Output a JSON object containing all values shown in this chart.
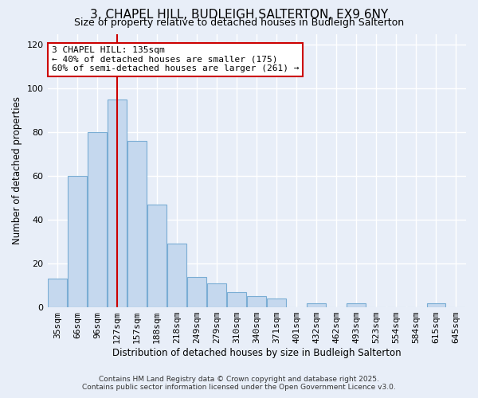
{
  "title1": "3, CHAPEL HILL, BUDLEIGH SALTERTON, EX9 6NY",
  "title2": "Size of property relative to detached houses in Budleigh Salterton",
  "xlabel": "Distribution of detached houses by size in Budleigh Salterton",
  "ylabel": "Number of detached properties",
  "bar_labels": [
    "35sqm",
    "66sqm",
    "96sqm",
    "127sqm",
    "157sqm",
    "188sqm",
    "218sqm",
    "249sqm",
    "279sqm",
    "310sqm",
    "340sqm",
    "371sqm",
    "401sqm",
    "432sqm",
    "462sqm",
    "493sqm",
    "523sqm",
    "554sqm",
    "584sqm",
    "615sqm",
    "645sqm"
  ],
  "bar_values": [
    13,
    60,
    80,
    95,
    76,
    47,
    29,
    14,
    11,
    7,
    5,
    4,
    0,
    2,
    0,
    2,
    0,
    0,
    0,
    2,
    0
  ],
  "bar_color": "#c5d8ee",
  "bar_edge_color": "#7aadd4",
  "vline_x_index": 3,
  "vline_color": "#cc0000",
  "annotation_line1": "3 CHAPEL HILL: 135sqm",
  "annotation_line2": "← 40% of detached houses are smaller (175)",
  "annotation_line3": "60% of semi-detached houses are larger (261) →",
  "annotation_box_color": "#ffffff",
  "annotation_box_edge": "#cc0000",
  "ylim": [
    0,
    125
  ],
  "yticks": [
    0,
    20,
    40,
    60,
    80,
    100,
    120
  ],
  "footnote1": "Contains HM Land Registry data © Crown copyright and database right 2025.",
  "footnote2": "Contains public sector information licensed under the Open Government Licence v3.0.",
  "bg_color": "#e8eef8",
  "grid_color": "#ffffff",
  "title1_fontsize": 11,
  "title2_fontsize": 9,
  "xlabel_fontsize": 8.5,
  "ylabel_fontsize": 8.5,
  "tick_fontsize": 8,
  "annot_fontsize": 8,
  "footnote_fontsize": 6.5
}
